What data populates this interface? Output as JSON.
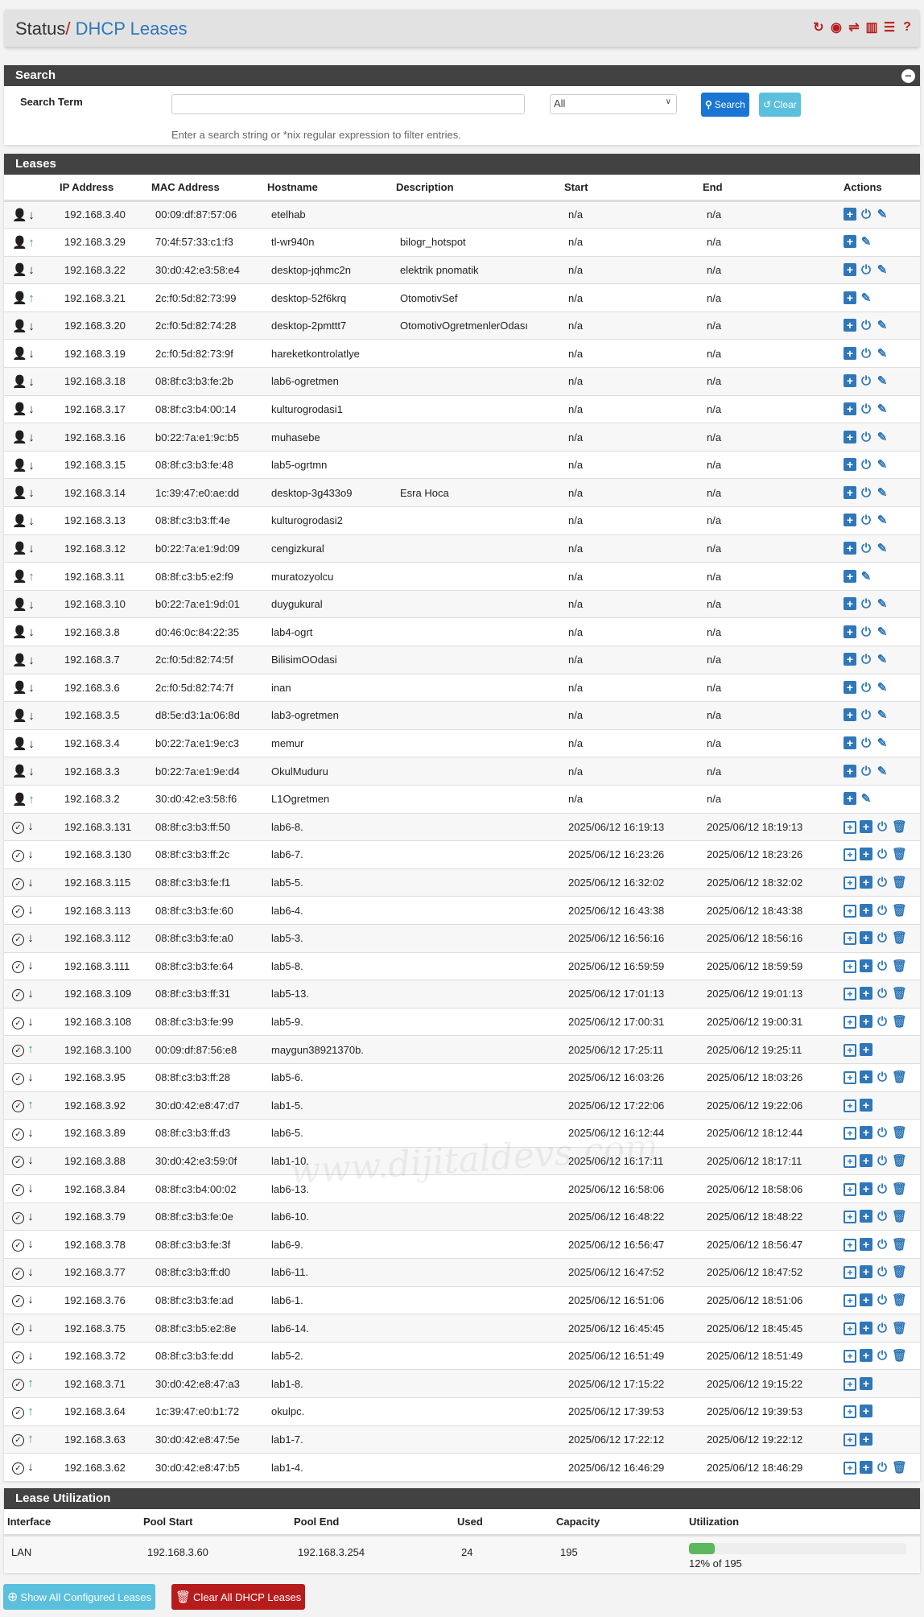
{
  "header": {
    "section": "Status",
    "separator": "/",
    "page": "DHCP Leases",
    "icons": [
      "reload-icon",
      "stop-icon",
      "settings-icon",
      "chart-icon",
      "log-icon",
      "help-icon"
    ]
  },
  "search": {
    "title": "Search",
    "label": "Search Term",
    "value": "",
    "placeholder": "",
    "select": "All",
    "search_btn": "Search",
    "clear_btn": "Clear",
    "hint": "Enter a search string or *nix regular expression to filter entries."
  },
  "leases": {
    "title": "Leases",
    "columns": [
      "",
      "IP Address",
      "MAC Address",
      "Hostname",
      "Description",
      "Start",
      "End",
      "Actions"
    ],
    "rows": [
      [
        "static",
        false,
        "192.168.3.40",
        "00:09:df:87:57:06",
        "etelhab",
        "",
        "n/a",
        "n/a"
      ],
      [
        "static",
        true,
        "192.168.3.29",
        "70:4f:57:33:c1:f3",
        "tl-wr940n",
        "bilogr_hotspot",
        "n/a",
        "n/a"
      ],
      [
        "static",
        false,
        "192.168.3.22",
        "30:d0:42:e3:58:e4",
        "desktop-jqhmc2n",
        "elektrik pnomatik",
        "n/a",
        "n/a"
      ],
      [
        "static",
        true,
        "192.168.3.21",
        "2c:f0:5d:82:73:99",
        "desktop-52f6krq",
        "OtomotivSef",
        "n/a",
        "n/a"
      ],
      [
        "static",
        false,
        "192.168.3.20",
        "2c:f0:5d:82:74:28",
        "desktop-2pmttt7",
        "OtomotivOgretmenlerOdası",
        "n/a",
        "n/a"
      ],
      [
        "static",
        false,
        "192.168.3.19",
        "2c:f0:5d:82:73:9f",
        "hareketkontrolatlye",
        "",
        "n/a",
        "n/a"
      ],
      [
        "static",
        false,
        "192.168.3.18",
        "08:8f:c3:b3:fe:2b",
        "lab6-ogretmen",
        "",
        "n/a",
        "n/a"
      ],
      [
        "static",
        false,
        "192.168.3.17",
        "08:8f:c3:b4:00:14",
        "kulturogrodasi1",
        "",
        "n/a",
        "n/a"
      ],
      [
        "static",
        false,
        "192.168.3.16",
        "b0:22:7a:e1:9c:b5",
        "muhasebe",
        "",
        "n/a",
        "n/a"
      ],
      [
        "static",
        false,
        "192.168.3.15",
        "08:8f:c3:b3:fe:48",
        "lab5-ogrtmn",
        "",
        "n/a",
        "n/a"
      ],
      [
        "static",
        false,
        "192.168.3.14",
        "1c:39:47:e0:ae:dd",
        "desktop-3g433o9",
        "Esra Hoca",
        "n/a",
        "n/a"
      ],
      [
        "static",
        false,
        "192.168.3.13",
        "08:8f:c3:b3:ff:4e",
        "kulturogrodasi2",
        "",
        "n/a",
        "n/a"
      ],
      [
        "static",
        false,
        "192.168.3.12",
        "b0:22:7a:e1:9d:09",
        "cengizkural",
        "",
        "n/a",
        "n/a"
      ],
      [
        "static",
        true,
        "192.168.3.11",
        "08:8f:c3:b5:e2:f9",
        "muratozyolcu",
        "",
        "n/a",
        "n/a"
      ],
      [
        "static",
        false,
        "192.168.3.10",
        "b0:22:7a:e1:9d:01",
        "duygukural",
        "",
        "n/a",
        "n/a"
      ],
      [
        "static",
        false,
        "192.168.3.8",
        "d0:46:0c:84:22:35",
        "lab4-ogrt",
        "",
        "n/a",
        "n/a"
      ],
      [
        "static",
        false,
        "192.168.3.7",
        "2c:f0:5d:82:74:5f",
        "BilisimOOdasi",
        "",
        "n/a",
        "n/a"
      ],
      [
        "static",
        false,
        "192.168.3.6",
        "2c:f0:5d:82:74:7f",
        "inan",
        "",
        "n/a",
        "n/a"
      ],
      [
        "static",
        false,
        "192.168.3.5",
        "d8:5e:d3:1a:06:8d",
        "lab3-ogretmen",
        "",
        "n/a",
        "n/a"
      ],
      [
        "static",
        false,
        "192.168.3.4",
        "b0:22:7a:e1:9e:c3",
        "memur",
        "",
        "n/a",
        "n/a"
      ],
      [
        "static",
        false,
        "192.168.3.3",
        "b0:22:7a:e1:9e:d4",
        "OkulMuduru",
        "",
        "n/a",
        "n/a"
      ],
      [
        "static",
        true,
        "192.168.3.2",
        "30:d0:42:e3:58:f6",
        "L1Ogretmen",
        "",
        "n/a",
        "n/a"
      ],
      [
        "dynamic",
        false,
        "192.168.3.131",
        "08:8f:c3:b3:ff:50",
        "lab6-8.",
        "",
        "2025/06/12 16:19:13",
        "2025/06/12 18:19:13"
      ],
      [
        "dynamic",
        false,
        "192.168.3.130",
        "08:8f:c3:b3:ff:2c",
        "lab6-7.",
        "",
        "2025/06/12 16:23:26",
        "2025/06/12 18:23:26"
      ],
      [
        "dynamic",
        false,
        "192.168.3.115",
        "08:8f:c3:b3:fe:f1",
        "lab5-5.",
        "",
        "2025/06/12 16:32:02",
        "2025/06/12 18:32:02"
      ],
      [
        "dynamic",
        false,
        "192.168.3.113",
        "08:8f:c3:b3:fe:60",
        "lab6-4.",
        "",
        "2025/06/12 16:43:38",
        "2025/06/12 18:43:38"
      ],
      [
        "dynamic",
        false,
        "192.168.3.112",
        "08:8f:c3:b3:fe:a0",
        "lab5-3.",
        "",
        "2025/06/12 16:56:16",
        "2025/06/12 18:56:16"
      ],
      [
        "dynamic",
        false,
        "192.168.3.111",
        "08:8f:c3:b3:fe:64",
        "lab5-8.",
        "",
        "2025/06/12 16:59:59",
        "2025/06/12 18:59:59"
      ],
      [
        "dynamic",
        false,
        "192.168.3.109",
        "08:8f:c3:b3:ff:31",
        "lab5-13.",
        "",
        "2025/06/12 17:01:13",
        "2025/06/12 19:01:13"
      ],
      [
        "dynamic",
        false,
        "192.168.3.108",
        "08:8f:c3:b3:fe:99",
        "lab5-9.",
        "",
        "2025/06/12 17:00:31",
        "2025/06/12 19:00:31"
      ],
      [
        "dynamic",
        true,
        "192.168.3.100",
        "00:09:df:87:56:e8",
        "maygun38921370b.",
        "",
        "2025/06/12 17:25:11",
        "2025/06/12 19:25:11"
      ],
      [
        "dynamic",
        false,
        "192.168.3.95",
        "08:8f:c3:b3:ff:28",
        "lab5-6.",
        "",
        "2025/06/12 16:03:26",
        "2025/06/12 18:03:26"
      ],
      [
        "dynamic",
        true,
        "192.168.3.92",
        "30:d0:42:e8:47:d7",
        "lab1-5.",
        "",
        "2025/06/12 17:22:06",
        "2025/06/12 19:22:06"
      ],
      [
        "dynamic",
        false,
        "192.168.3.89",
        "08:8f:c3:b3:ff:d3",
        "lab6-5.",
        "",
        "2025/06/12 16:12:44",
        "2025/06/12 18:12:44"
      ],
      [
        "dynamic",
        false,
        "192.168.3.88",
        "30:d0:42:e3:59:0f",
        "lab1-10.",
        "",
        "2025/06/12 16:17:11",
        "2025/06/12 18:17:11"
      ],
      [
        "dynamic",
        false,
        "192.168.3.84",
        "08:8f:c3:b4:00:02",
        "lab6-13.",
        "",
        "2025/06/12 16:58:06",
        "2025/06/12 18:58:06"
      ],
      [
        "dynamic",
        false,
        "192.168.3.79",
        "08:8f:c3:b3:fe:0e",
        "lab6-10.",
        "",
        "2025/06/12 16:48:22",
        "2025/06/12 18:48:22"
      ],
      [
        "dynamic",
        false,
        "192.168.3.78",
        "08:8f:c3:b3:fe:3f",
        "lab6-9.",
        "",
        "2025/06/12 16:56:47",
        "2025/06/12 18:56:47"
      ],
      [
        "dynamic",
        false,
        "192.168.3.77",
        "08:8f:c3:b3:ff:d0",
        "lab6-11.",
        "",
        "2025/06/12 16:47:52",
        "2025/06/12 18:47:52"
      ],
      [
        "dynamic",
        false,
        "192.168.3.76",
        "08:8f:c3:b3:fe:ad",
        "lab6-1.",
        "",
        "2025/06/12 16:51:06",
        "2025/06/12 18:51:06"
      ],
      [
        "dynamic",
        false,
        "192.168.3.75",
        "08:8f:c3:b5:e2:8e",
        "lab6-14.",
        "",
        "2025/06/12 16:45:45",
        "2025/06/12 18:45:45"
      ],
      [
        "dynamic",
        false,
        "192.168.3.72",
        "08:8f:c3:b3:fe:dd",
        "lab5-2.",
        "",
        "2025/06/12 16:51:49",
        "2025/06/12 18:51:49"
      ],
      [
        "dynamic",
        true,
        "192.168.3.71",
        "30:d0:42:e8:47:a3",
        "lab1-8.",
        "",
        "2025/06/12 17:15:22",
        "2025/06/12 19:15:22"
      ],
      [
        "dynamic",
        true,
        "192.168.3.64",
        "1c:39:47:e0:b1:72",
        "okulpc.",
        "",
        "2025/06/12 17:39:53",
        "2025/06/12 19:39:53"
      ],
      [
        "dynamic",
        true,
        "192.168.3.63",
        "30:d0:42:e8:47:5e",
        "lab1-7.",
        "",
        "2025/06/12 17:22:12",
        "2025/06/12 19:22:12"
      ],
      [
        "dynamic",
        false,
        "192.168.3.62",
        "30:d0:42:e8:47:b5",
        "lab1-4.",
        "",
        "2025/06/12 16:46:29",
        "2025/06/12 18:46:29"
      ]
    ]
  },
  "utilization": {
    "title": "Lease Utilization",
    "columns": [
      "Interface",
      "Pool Start",
      "Pool End",
      "Used",
      "Capacity",
      "Utilization"
    ],
    "row": {
      "interface": "LAN",
      "pool_start": "192.168.3.60",
      "pool_end": "192.168.3.254",
      "used": "24",
      "capacity": "195",
      "percent": 12,
      "label": "12% of 195"
    }
  },
  "buttons": {
    "show_all": "Show All Configured Leases",
    "clear_all": "Clear All DHCP Leases"
  },
  "watermark": "www.dijitaldevs.com",
  "colors": {
    "accent": "#2f77b8",
    "danger": "#b71c1c",
    "info": "#5bc0de",
    "online": "#2ea44f",
    "panel_header": "#424242"
  }
}
